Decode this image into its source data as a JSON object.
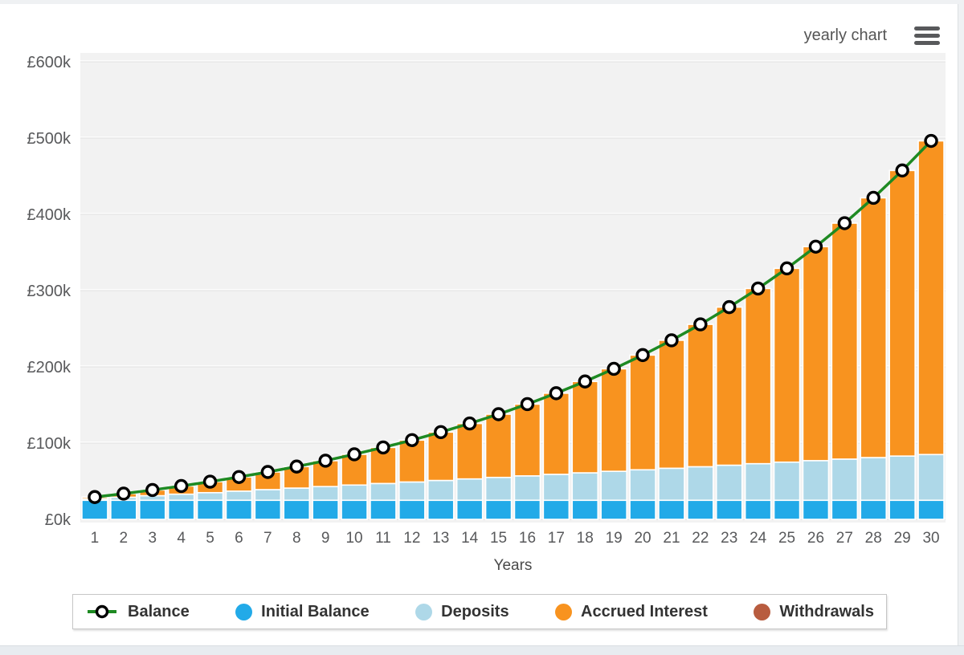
{
  "header": {
    "title": "yearly chart",
    "menu_icon": "hamburger-menu-icon"
  },
  "chart_data": {
    "type": "bar",
    "subtype": "stacked-bars-with-balance-line",
    "title": "",
    "xlabel": "Years",
    "ylim": [
      0,
      600
    ],
    "value_unit": "£ thousands",
    "grid": true,
    "legend_position": "bottom",
    "plot_background_color": "#f2f2f2",
    "grid_color": "#e0e0e0",
    "y_ticks": [
      "£0k",
      "£100k",
      "£200k",
      "£300k",
      "£400k",
      "£500k",
      "£600k"
    ],
    "y_tick_values": [
      0,
      100,
      200,
      300,
      400,
      500,
      600
    ],
    "categories": [
      1,
      2,
      3,
      4,
      5,
      6,
      7,
      8,
      9,
      10,
      11,
      12,
      13,
      14,
      15,
      16,
      17,
      18,
      19,
      20,
      21,
      22,
      23,
      24,
      25,
      26,
      27,
      28,
      29,
      30
    ],
    "series": [
      {
        "name": "Initial Balance",
        "type": "bar",
        "color": "#22aae8",
        "values": [
          25,
          25,
          25,
          25,
          25,
          25,
          25,
          25,
          25,
          25,
          25,
          25,
          25,
          25,
          25,
          25,
          25,
          25,
          25,
          25,
          25,
          25,
          25,
          25,
          25,
          25,
          25,
          25,
          25,
          25
        ]
      },
      {
        "name": "Deposits",
        "type": "bar",
        "color": "#aed8e8",
        "values": [
          2,
          4,
          6,
          8,
          10,
          12,
          14,
          16,
          18,
          20,
          22,
          24,
          26,
          28,
          30,
          32,
          34,
          36,
          38,
          40,
          42,
          44,
          46,
          48,
          50,
          52,
          54,
          56,
          58,
          60
        ]
      },
      {
        "name": "Accrued Interest",
        "type": "bar",
        "color": "#f8931f",
        "values": [
          2.2,
          4.7,
          7.5,
          10.7,
          14.4,
          18.5,
          23.1,
          28.2,
          33.9,
          40.3,
          47.3,
          54.9,
          63.4,
          72.7,
          82.9,
          94.1,
          106.4,
          119.8,
          134.4,
          150.4,
          167.8,
          186.7,
          207.3,
          229.7,
          254.1,
          280.6,
          309.4,
          340.6,
          374.5,
          411.3
        ]
      },
      {
        "name": "Withdrawals",
        "type": "bar",
        "color": "#b85c3f",
        "values": [
          0,
          0,
          0,
          0,
          0,
          0,
          0,
          0,
          0,
          0,
          0,
          0,
          0,
          0,
          0,
          0,
          0,
          0,
          0,
          0,
          0,
          0,
          0,
          0,
          0,
          0,
          0,
          0,
          0,
          0
        ]
      },
      {
        "name": "Balance",
        "type": "line",
        "color": "#1e8a22",
        "marker_fill": "#ffffff",
        "marker_stroke": "#000000",
        "values": [
          29.2,
          33.7,
          38.5,
          43.7,
          49.4,
          55.5,
          62.1,
          69.2,
          76.9,
          85.3,
          94.3,
          103.9,
          114.4,
          125.7,
          137.9,
          151.1,
          165.4,
          180.8,
          197.4,
          215.4,
          234.8,
          255.7,
          278.3,
          302.7,
          329.1,
          357.6,
          388.4,
          421.6,
          457.5,
          496.3
        ]
      }
    ]
  },
  "legend": {
    "items": [
      {
        "label": "Balance",
        "icon": "line-marker",
        "color": "#1e8a22"
      },
      {
        "label": "Initial Balance",
        "icon": "dot",
        "color": "#22aae8"
      },
      {
        "label": "Deposits",
        "icon": "dot",
        "color": "#aed8e8"
      },
      {
        "label": "Accrued Interest",
        "icon": "dot",
        "color": "#f8931f"
      },
      {
        "label": "Withdrawals",
        "icon": "dot",
        "color": "#b85c3f"
      }
    ]
  }
}
